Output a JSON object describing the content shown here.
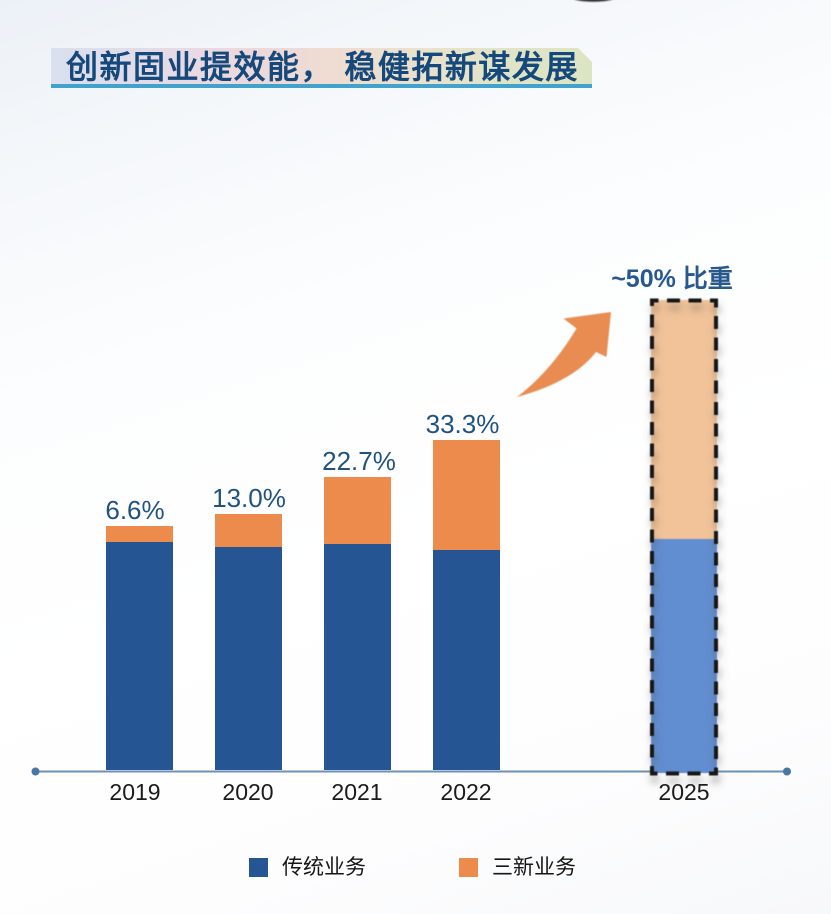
{
  "slide": {
    "title": "创新固业提效能， 稳健拓新谋发展",
    "title_text_color": "#16497b",
    "title_underline_color": "#41a2cc",
    "decoration": "black-ellipse-arc-top-center"
  },
  "chart_data": {
    "type": "bar",
    "stacked": true,
    "categories": [
      "2019",
      "2020",
      "2021",
      "2022",
      "2025"
    ],
    "series": [
      {
        "name": "传统业务",
        "color": "#255593",
        "share_pct": [
          93.4,
          87.0,
          77.3,
          66.7,
          50
        ]
      },
      {
        "name": "三新业务",
        "color": "#ED8B4C",
        "share_pct": [
          6.6,
          13.0,
          22.7,
          33.3,
          50
        ]
      }
    ],
    "value_labels": [
      "6.6%",
      "13.0%",
      "22.7%",
      "33.3%",
      ""
    ],
    "bar_total_heights_rel": [
      244,
      256,
      293,
      330,
      470
    ],
    "annotation": {
      "text": "~50% 比重",
      "target_category": "2025"
    },
    "forecast": {
      "category": "2025",
      "segment_colors": {
        "传统业务": "#618DD1",
        "三新业务": "#F2C399"
      },
      "border_style": "black dashed"
    },
    "legend_position": "bottom",
    "legend_entries": [
      "传统业务",
      "三新业务"
    ],
    "axis_line_color": "#7396BC",
    "axis_dot_color": "#4A76A3",
    "value_label_color": "#1f5380",
    "year_label_color": "#1b1b1b",
    "arrow_color": "#E98C51",
    "xlabel": "",
    "ylabel": "",
    "grid": false
  }
}
